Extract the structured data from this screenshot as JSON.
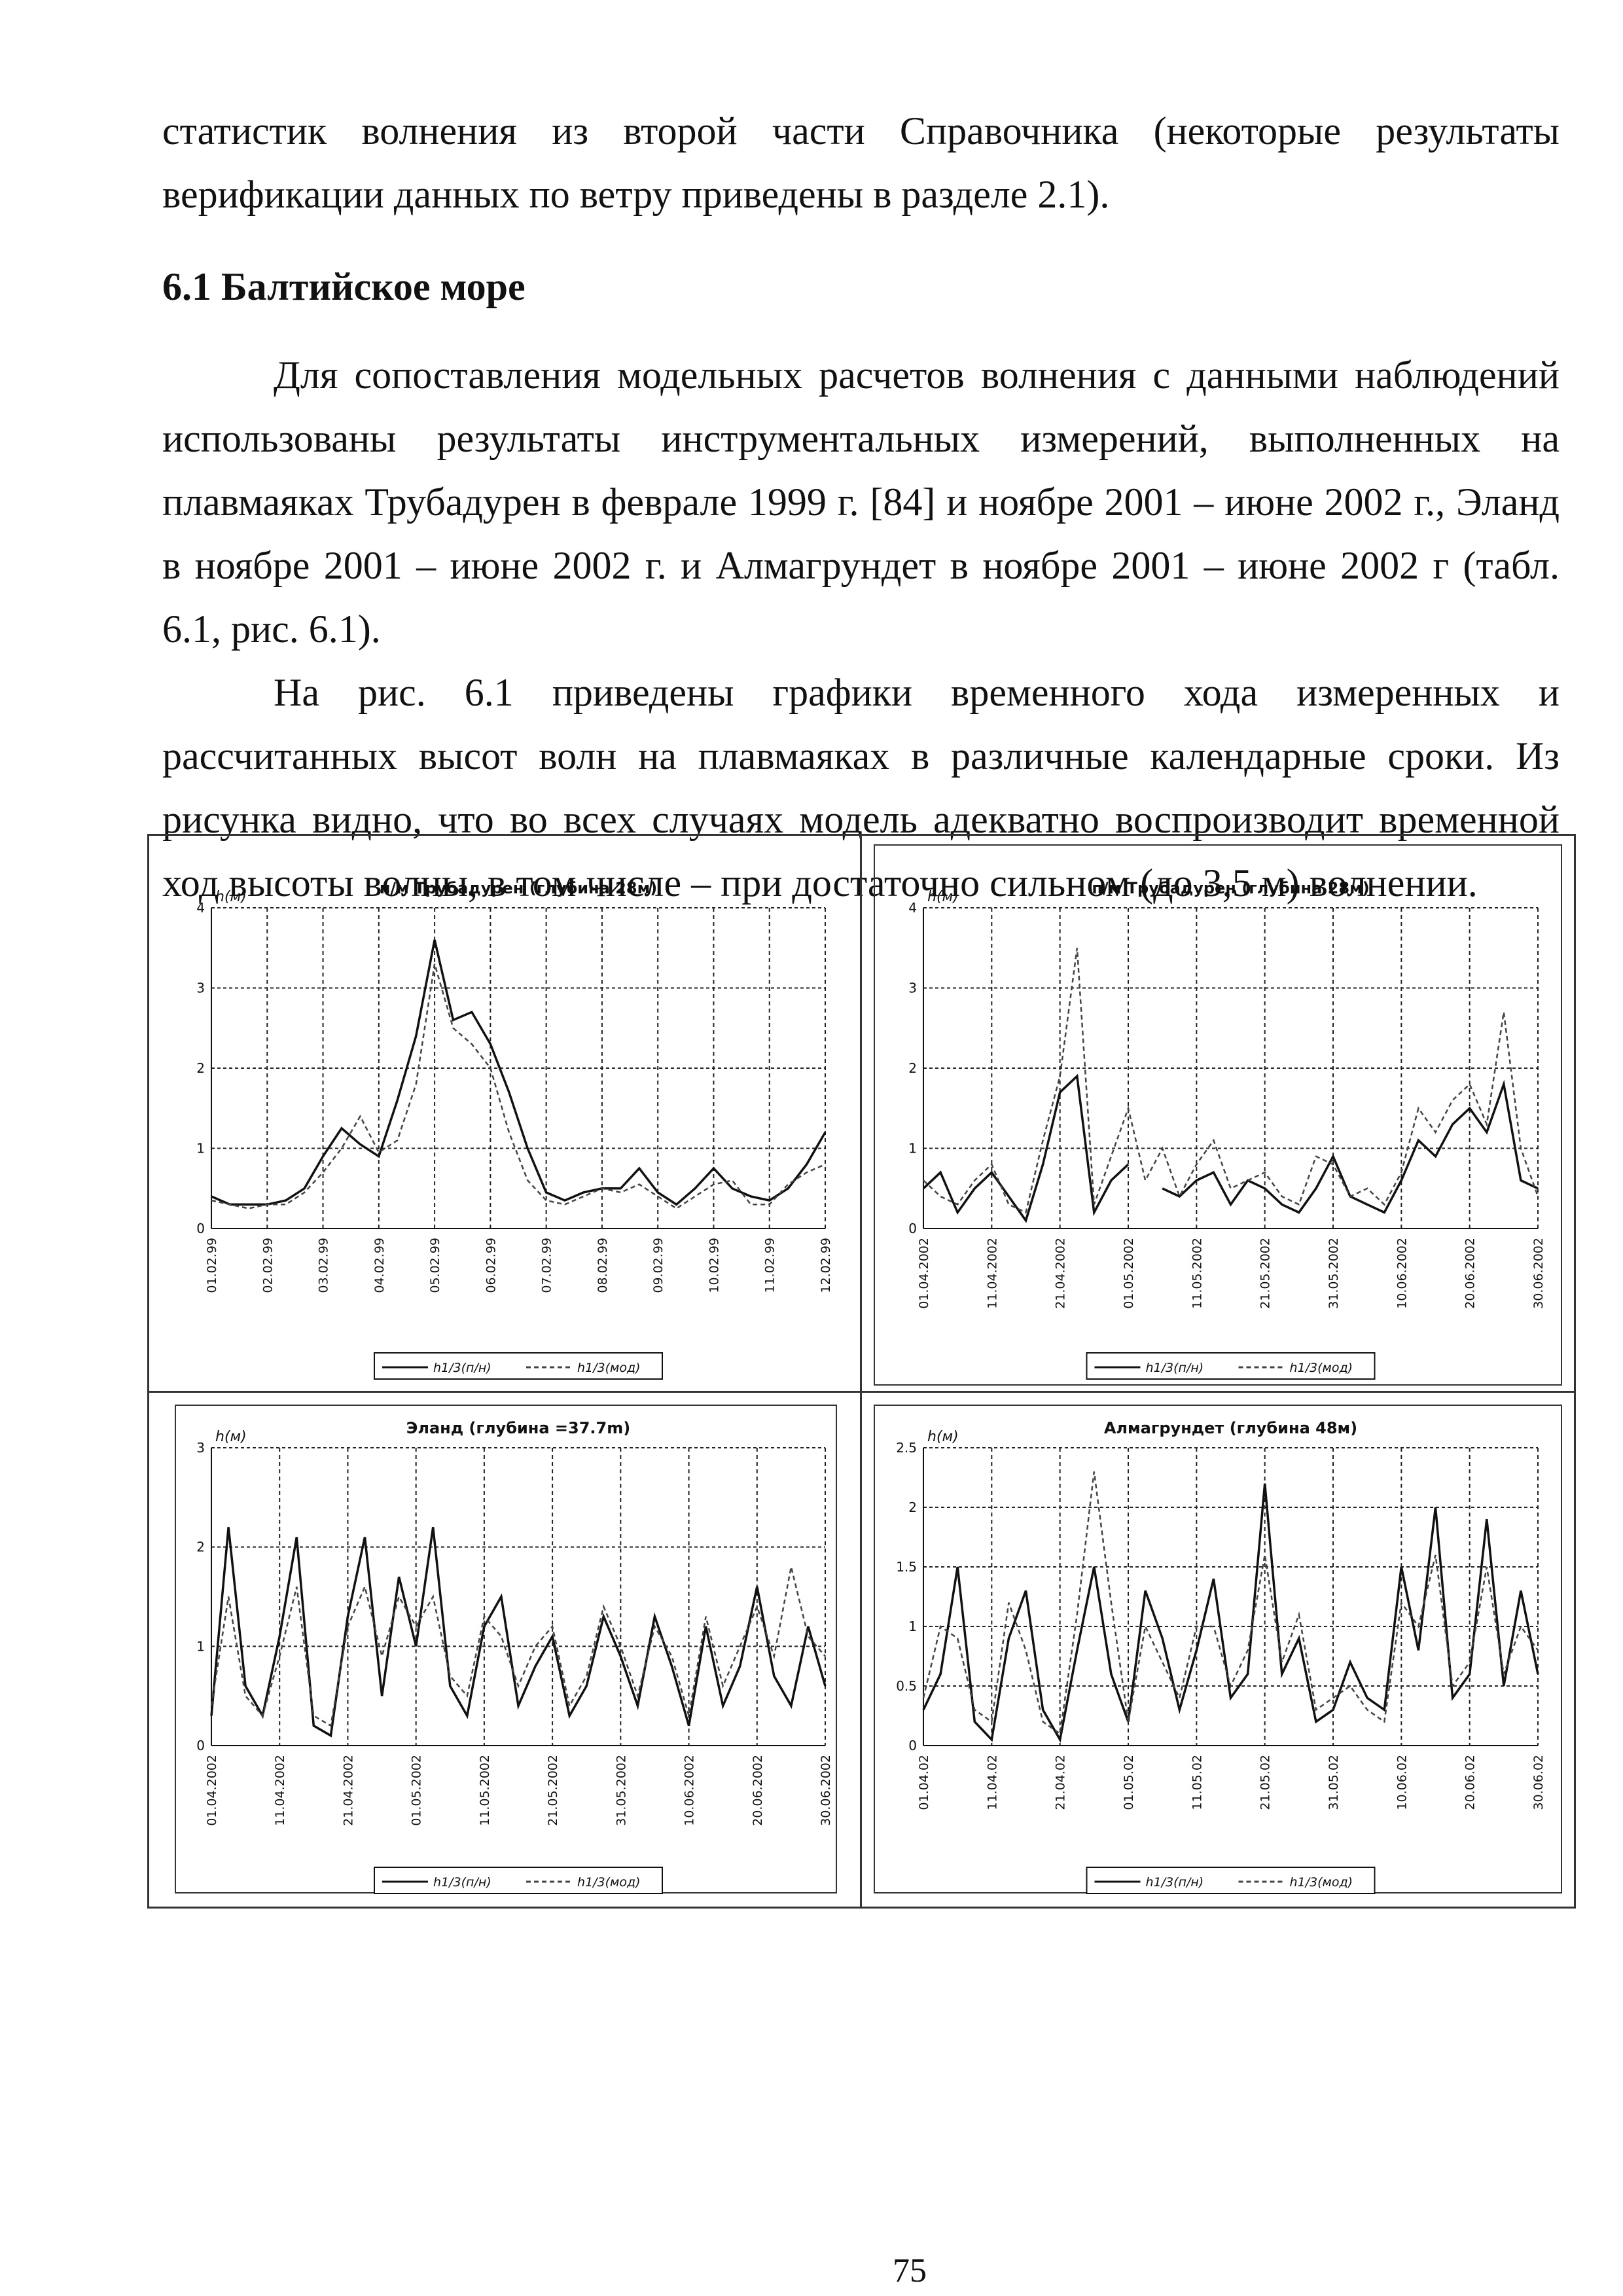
{
  "text": {
    "paragraph_0": "статистик волнения из второй части Справочника (некоторые результаты верификации данных по ветру приведены в разделе 2.1).",
    "heading": "6.1 Балтийское море",
    "paragraph_1": "Для сопоставления модельных расчетов волнения с данными наблюдений использованы результаты инструментальных измерений, выполненных на плавмаяках Трубадурен в феврале 1999 г. [84] и ноябре 2001 – июне 2002 г., Эланд в ноябре 2001 – июне 2002 г. и Алмагрундет в ноябре 2001 – июне 2002 г (табл. 6.1, рис. 6.1).",
    "paragraph_2": "На рис. 6.1 приведены графики временного хода измеренных и рассчитанных высот волн на плавмаяках в различные календарные сроки. Из рисунка видно, что во всех случаях модель адекватно воспроизводит временной ход высоты волны, в том числе – при достаточно сильном (до 3,5 м) волнении.",
    "page_number": "75"
  },
  "chart_data": [
    {
      "type": "line",
      "title": "п/м Трубадурен (глубина 28м)",
      "y_label": "h(м)",
      "categories": [
        "01.02.99",
        null,
        null,
        "02.02.99",
        null,
        null,
        "03.02.99",
        null,
        null,
        "04.02.99",
        null,
        null,
        "05.02.99",
        null,
        null,
        "06.02.99",
        null,
        null,
        "07.02.99",
        null,
        null,
        "08.02.99",
        null,
        null,
        "09.02.99",
        null,
        null,
        "10.02.99",
        null,
        null,
        "11.02.99",
        null,
        null,
        "12.02.99"
      ],
      "ylim": [
        0,
        4
      ],
      "yticks": [
        0,
        1,
        2,
        3,
        4
      ],
      "grid": true,
      "legend": "bottom",
      "series": [
        {
          "name": "h1/3(п/н)",
          "color": "#111111",
          "dashed": false,
          "values": [
            0.4,
            0.3,
            0.3,
            0.3,
            0.35,
            0.5,
            0.9,
            1.25,
            1.05,
            0.9,
            1.6,
            2.4,
            3.6,
            2.6,
            2.7,
            2.3,
            1.7,
            1.0,
            0.45,
            0.35,
            0.45,
            0.5,
            0.5,
            0.75,
            0.45,
            0.3,
            0.5,
            0.75,
            0.5,
            0.4,
            0.35,
            0.5,
            0.8,
            1.2
          ]
        },
        {
          "name": "h1/3(мод)",
          "color": "#444444",
          "dashed": true,
          "values": [
            0.35,
            0.3,
            0.25,
            0.3,
            0.3,
            0.45,
            0.7,
            1.0,
            1.4,
            0.95,
            1.1,
            1.8,
            3.3,
            2.5,
            2.3,
            2.0,
            1.2,
            0.6,
            0.35,
            0.3,
            0.4,
            0.5,
            0.45,
            0.55,
            0.4,
            0.25,
            0.4,
            0.55,
            0.6,
            0.3,
            0.3,
            0.55,
            0.7,
            0.8
          ]
        }
      ]
    },
    {
      "type": "line",
      "title": "п/м Трубадурен (глубина 28м)",
      "y_label": "h(м)",
      "categories": [
        "01.04.2002",
        null,
        null,
        null,
        "11.04.2002",
        null,
        null,
        null,
        "21.04.2002",
        null,
        null,
        null,
        "01.05.2002",
        null,
        null,
        null,
        "11.05.2002",
        null,
        null,
        null,
        "21.05.2002",
        null,
        null,
        null,
        "31.05.2002",
        null,
        null,
        null,
        "10.06.2002",
        null,
        null,
        null,
        "20.06.2002",
        null,
        null,
        null,
        "30.06.2002"
      ],
      "ylim": [
        0,
        4
      ],
      "yticks": [
        0,
        1,
        2,
        3,
        4
      ],
      "grid": true,
      "legend": "bottom",
      "series": [
        {
          "name": "h1/3(п/н)",
          "color": "#111111",
          "dashed": false,
          "values": [
            0.5,
            0.7,
            0.2,
            0.5,
            0.7,
            0.4,
            0.1,
            0.8,
            1.7,
            1.9,
            0.2,
            0.6,
            0.8,
            null,
            0.5,
            0.4,
            0.6,
            0.7,
            0.3,
            0.6,
            0.5,
            0.3,
            0.2,
            0.5,
            0.9,
            0.4,
            0.3,
            0.2,
            0.6,
            1.1,
            0.9,
            1.3,
            1.5,
            1.2,
            1.8,
            0.6,
            0.5
          ]
        },
        {
          "name": "h1/3(мод)",
          "color": "#444444",
          "dashed": true,
          "values": [
            0.6,
            0.4,
            0.3,
            0.6,
            0.8,
            0.3,
            0.2,
            1.1,
            1.9,
            3.5,
            0.3,
            0.9,
            1.5,
            0.6,
            1.0,
            0.4,
            0.8,
            1.1,
            0.5,
            0.6,
            0.7,
            0.4,
            0.3,
            0.9,
            0.8,
            0.4,
            0.5,
            0.3,
            0.7,
            1.5,
            1.2,
            1.6,
            1.8,
            1.3,
            2.7,
            1.0,
            0.4
          ]
        }
      ]
    },
    {
      "type": "line",
      "title": "Эланд (глубина =37.7m)",
      "y_label": "h(м)",
      "categories": [
        "01.04.2002",
        null,
        null,
        null,
        "11.04.2002",
        null,
        null,
        null,
        "21.04.2002",
        null,
        null,
        null,
        "01.05.2002",
        null,
        null,
        null,
        "11.05.2002",
        null,
        null,
        null,
        "21.05.2002",
        null,
        null,
        null,
        "31.05.2002",
        null,
        null,
        null,
        "10.06.2002",
        null,
        null,
        null,
        "20.06.2002",
        null,
        null,
        null,
        "30.06.2002"
      ],
      "ylim": [
        0,
        3
      ],
      "yticks": [
        0,
        1,
        2,
        3
      ],
      "grid": true,
      "legend": "bottom",
      "series": [
        {
          "name": "h1/3(п/н)",
          "color": "#111111",
          "dashed": false,
          "values": [
            0.3,
            2.2,
            0.6,
            0.3,
            1.1,
            2.1,
            0.2,
            0.1,
            1.3,
            2.1,
            0.5,
            1.7,
            1.0,
            2.2,
            0.6,
            0.3,
            1.2,
            1.5,
            0.4,
            0.8,
            1.1,
            0.3,
            0.6,
            1.3,
            0.9,
            0.4,
            1.3,
            0.8,
            0.2,
            1.2,
            0.4,
            0.8,
            1.6,
            0.7,
            0.4,
            1.2,
            0.6
          ]
        },
        {
          "name": "h1/3(мод)",
          "color": "#444444",
          "dashed": true,
          "values": [
            0.4,
            1.5,
            0.5,
            0.3,
            0.9,
            1.6,
            0.3,
            0.2,
            1.2,
            1.6,
            0.9,
            1.5,
            1.2,
            1.5,
            0.7,
            0.5,
            1.3,
            1.1,
            0.6,
            1.0,
            1.2,
            0.4,
            0.7,
            1.4,
            1.0,
            0.5,
            1.2,
            0.9,
            0.3,
            1.3,
            0.6,
            1.0,
            1.4,
            0.9,
            1.8,
            1.1,
            0.9
          ]
        }
      ]
    },
    {
      "type": "line",
      "title": "Алмагрундет (глубина 48м)",
      "y_label": "h(м)",
      "categories": [
        "01.04.02",
        null,
        null,
        null,
        "11.04.02",
        null,
        null,
        null,
        "21.04.02",
        null,
        null,
        null,
        "01.05.02",
        null,
        null,
        null,
        "11.05.02",
        null,
        null,
        null,
        "21.05.02",
        null,
        null,
        null,
        "31.05.02",
        null,
        null,
        null,
        "10.06.02",
        null,
        null,
        null,
        "20.06.02",
        null,
        null,
        null,
        "30.06.02"
      ],
      "ylim": [
        0,
        2.5
      ],
      "yticks": [
        0,
        0.5,
        1,
        1.5,
        2,
        2.5
      ],
      "grid": true,
      "legend": "bottom",
      "series": [
        {
          "name": "h1/3(п/н)",
          "color": "#111111",
          "dashed": false,
          "values": [
            0.3,
            0.6,
            1.5,
            0.2,
            0.05,
            0.9,
            1.3,
            0.3,
            0.05,
            0.8,
            1.5,
            0.6,
            0.2,
            1.3,
            0.9,
            0.3,
            0.8,
            1.4,
            0.4,
            0.6,
            2.2,
            0.6,
            0.9,
            0.2,
            0.3,
            0.7,
            0.4,
            0.3,
            1.5,
            0.8,
            2.0,
            0.4,
            0.6,
            1.9,
            0.5,
            1.3,
            0.6
          ]
        },
        {
          "name": "h1/3(мод)",
          "color": "#444444",
          "dashed": true,
          "values": [
            0.4,
            1.0,
            0.9,
            0.3,
            0.2,
            1.2,
            0.8,
            0.2,
            0.1,
            1.1,
            2.3,
            1.2,
            0.2,
            1.0,
            0.7,
            0.4,
            1.0,
            1.0,
            0.5,
            0.8,
            1.6,
            0.7,
            1.1,
            0.3,
            0.4,
            0.5,
            0.3,
            0.2,
            1.2,
            1.0,
            1.6,
            0.5,
            0.7,
            1.5,
            0.6,
            1.0,
            0.8
          ]
        }
      ]
    }
  ]
}
